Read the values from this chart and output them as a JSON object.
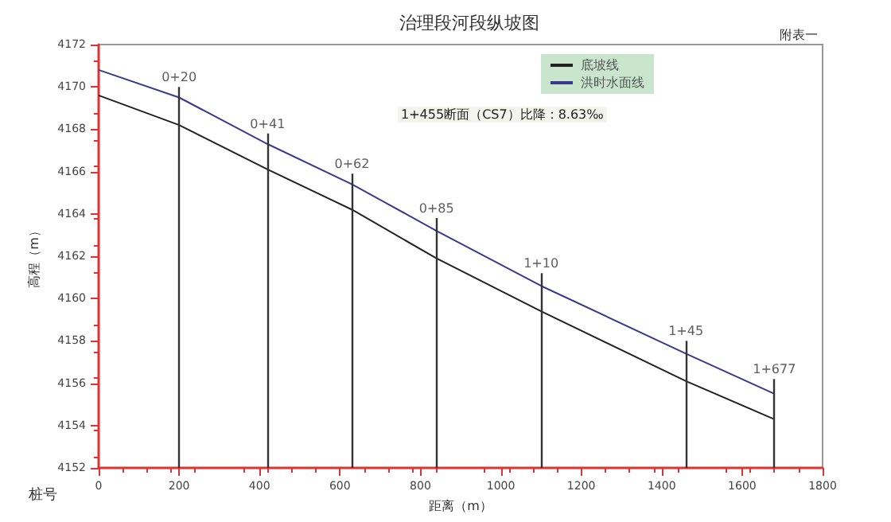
{
  "chart_data": {
    "type": "line",
    "title": "治理段河段纵坡图",
    "subtitle": "附表一",
    "xlabel": "距离（m）",
    "ylabel": "高程（m）",
    "annotations": [
      "1+455断面（CS7）比降：8.63‰",
      "桩号",
      {
        "text": "0+20",
        "x": 200,
        "y": 4170.0
      },
      {
        "text": "0+41",
        "x": 420,
        "y": 4167.8
      },
      {
        "text": "0+62",
        "x": 630,
        "y": 4165.9
      },
      {
        "text": "0+85",
        "x": 840,
        "y": 4163.8
      },
      {
        "text": "1+10",
        "x": 1100,
        "y": 4161.2
      },
      {
        "text": "1+45",
        "x": 1460,
        "y": 4158.0
      },
      {
        "text": "1+677",
        "x": 1680,
        "y": 4156.2
      }
    ],
    "x": [
      0,
      200,
      420,
      630,
      840,
      1100,
      1460,
      1680
    ],
    "series": [
      {
        "name": "底坡线",
        "color": "#222222",
        "values": [
          4169.6,
          4168.2,
          4166.1,
          4164.2,
          4161.9,
          4159.4,
          4156.1,
          4154.3
        ]
      },
      {
        "name": "洪时水面线",
        "color": "#3a3a8c",
        "values": [
          4170.8,
          4169.5,
          4167.3,
          4165.4,
          4163.2,
          4160.6,
          4157.4,
          4155.5
        ]
      }
    ],
    "ref_lines": [
      {
        "axis": "x",
        "value": 200
      },
      {
        "axis": "x",
        "value": 420
      },
      {
        "axis": "x",
        "value": 630
      },
      {
        "axis": "x",
        "value": 840
      },
      {
        "axis": "x",
        "value": 1100
      },
      {
        "axis": "x",
        "value": 1460
      },
      {
        "axis": "x",
        "value": 1680
      }
    ],
    "xlim": [
      0,
      1800
    ],
    "xticks": [
      0,
      200,
      400,
      600,
      800,
      1000,
      1200,
      1400,
      1600,
      1800
    ],
    "ylim": [
      4152,
      4172
    ],
    "yticks": [
      4152,
      4154,
      4156,
      4158,
      4160,
      4162,
      4164,
      4166,
      4168,
      4170,
      4172
    ],
    "grid": false,
    "legend": "top right",
    "marker": "none",
    "line_style": "solid"
  }
}
